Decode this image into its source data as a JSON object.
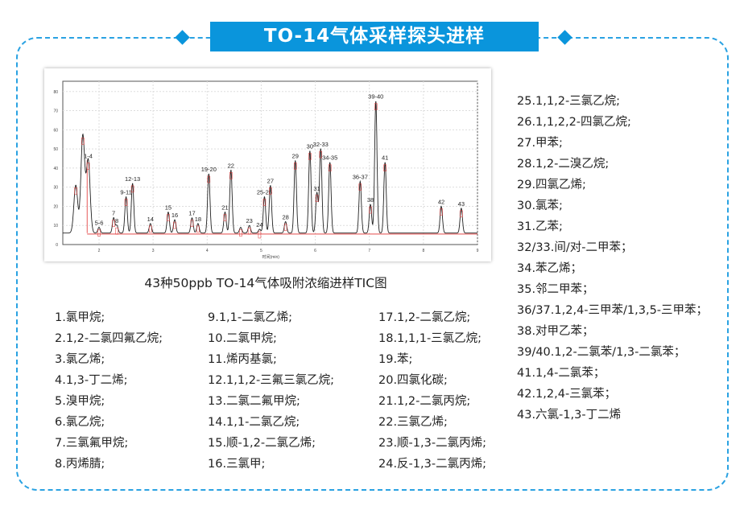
{
  "title": "TO-14气体采样探头进样",
  "colors": {
    "accent": "#0a95dc",
    "trace": "#222222",
    "baseline": "#e03030",
    "label": "#e03030"
  },
  "caption": "43种50ppb TO-14气体吸附浓缩进样TIC图",
  "chart_data": {
    "type": "line",
    "xlabel": "时间(min)",
    "xlim": [
      1.33,
      9
    ],
    "ylim": [
      0,
      85
    ],
    "xticks": [
      2,
      3,
      4,
      5,
      6,
      7,
      8,
      9
    ],
    "yticks": [
      0,
      10,
      20,
      30,
      40,
      50,
      60,
      70,
      80
    ],
    "grid": true,
    "baseline": 6,
    "peaks": [
      {
        "label": "",
        "time": 1.57,
        "height": 31
      },
      {
        "label": "",
        "time": 1.7,
        "height": 57
      },
      {
        "label": "1-4",
        "time": 1.8,
        "height": 44
      },
      {
        "label": "5-6",
        "time": 2.0,
        "height": 9
      },
      {
        "label": "7",
        "time": 2.27,
        "height": 14
      },
      {
        "label": "8",
        "time": 2.33,
        "height": 10
      },
      {
        "label": "9-11",
        "time": 2.5,
        "height": 25
      },
      {
        "label": "12-13",
        "time": 2.62,
        "height": 32
      },
      {
        "label": "14",
        "time": 2.95,
        "height": 11
      },
      {
        "label": "15",
        "time": 3.28,
        "height": 17
      },
      {
        "label": "16",
        "time": 3.4,
        "height": 13
      },
      {
        "label": "17",
        "time": 3.72,
        "height": 14
      },
      {
        "label": "18",
        "time": 3.83,
        "height": 11
      },
      {
        "label": "19-20",
        "time": 4.03,
        "height": 37
      },
      {
        "label": "21",
        "time": 4.33,
        "height": 17
      },
      {
        "label": "22",
        "time": 4.44,
        "height": 39
      },
      {
        "label": "",
        "time": 4.62,
        "height": 9
      },
      {
        "label": "23",
        "time": 4.78,
        "height": 10
      },
      {
        "label": "24",
        "time": 4.97,
        "height": 8
      },
      {
        "label": "25-26",
        "time": 5.06,
        "height": 25
      },
      {
        "label": "27",
        "time": 5.17,
        "height": 31
      },
      {
        "label": "28",
        "time": 5.45,
        "height": 12
      },
      {
        "label": "29",
        "time": 5.63,
        "height": 44
      },
      {
        "label": "30",
        "time": 5.9,
        "height": 49
      },
      {
        "label": "31",
        "time": 6.03,
        "height": 27
      },
      {
        "label": "32-33",
        "time": 6.1,
        "height": 50
      },
      {
        "label": "34-35",
        "time": 6.27,
        "height": 43
      },
      {
        "label": "36-37",
        "time": 6.83,
        "height": 33
      },
      {
        "label": "38",
        "time": 7.02,
        "height": 21
      },
      {
        "label": "39-40",
        "time": 7.12,
        "height": 75
      },
      {
        "label": "41",
        "time": 7.29,
        "height": 43
      },
      {
        "label": "42",
        "time": 8.33,
        "height": 20
      },
      {
        "label": "43",
        "time": 8.7,
        "height": 19
      }
    ]
  },
  "compounds": {
    "col1": [
      "1.氯甲烷;",
      "2.1,2-二氯四氟乙烷;",
      "3.氯乙烯;",
      "4.1,3-丁二烯;",
      "5.溴甲烷;",
      "6.氯乙烷;",
      "7.三氯氟甲烷;",
      "8.丙烯腈;"
    ],
    "col2": [
      "9.1,1-二氯乙烯;",
      "10.二氯甲烷;",
      "11.烯丙基氯;",
      "12.1,1,2-三氟三氯乙烷;",
      "13.二氯二氟甲烷;",
      "14.1,1-二氯乙烷;",
      "15.顺-1,2-二氯乙烯;",
      "16.三氯甲;"
    ],
    "col3": [
      "17.1,2-二氯乙烷;",
      "18.1,1,1-三氯乙烷;",
      "19.苯;",
      "20.四氯化碳;",
      "21.1,2-二氯丙烷;",
      "22.三氯乙烯;",
      "23.顺-1,3-二氯丙烯;",
      "24.反-1,3-二氯丙烯;"
    ],
    "col4": [
      "25.1,1,2-三氯乙烷;",
      "26.1,1,2,2-四氯乙烷;",
      "27.甲苯;",
      "28.1,2-二溴乙烷;",
      "29.四氯乙烯;",
      "30.氯苯;",
      "31.乙苯;",
      "32/33.间/对-二甲苯；",
      "34.苯乙烯；",
      "35.邻二甲苯；",
      "36/37.1,2,4-三甲苯/1,3,5-三甲苯；",
      "38.对甲乙苯；",
      "39/40.1,2-二氯苯/1,3-二氯苯；",
      "41.1,4-二氯苯；",
      "42.1,2,4-三氯苯；",
      "43.六氯-1,3-丁二烯"
    ]
  }
}
